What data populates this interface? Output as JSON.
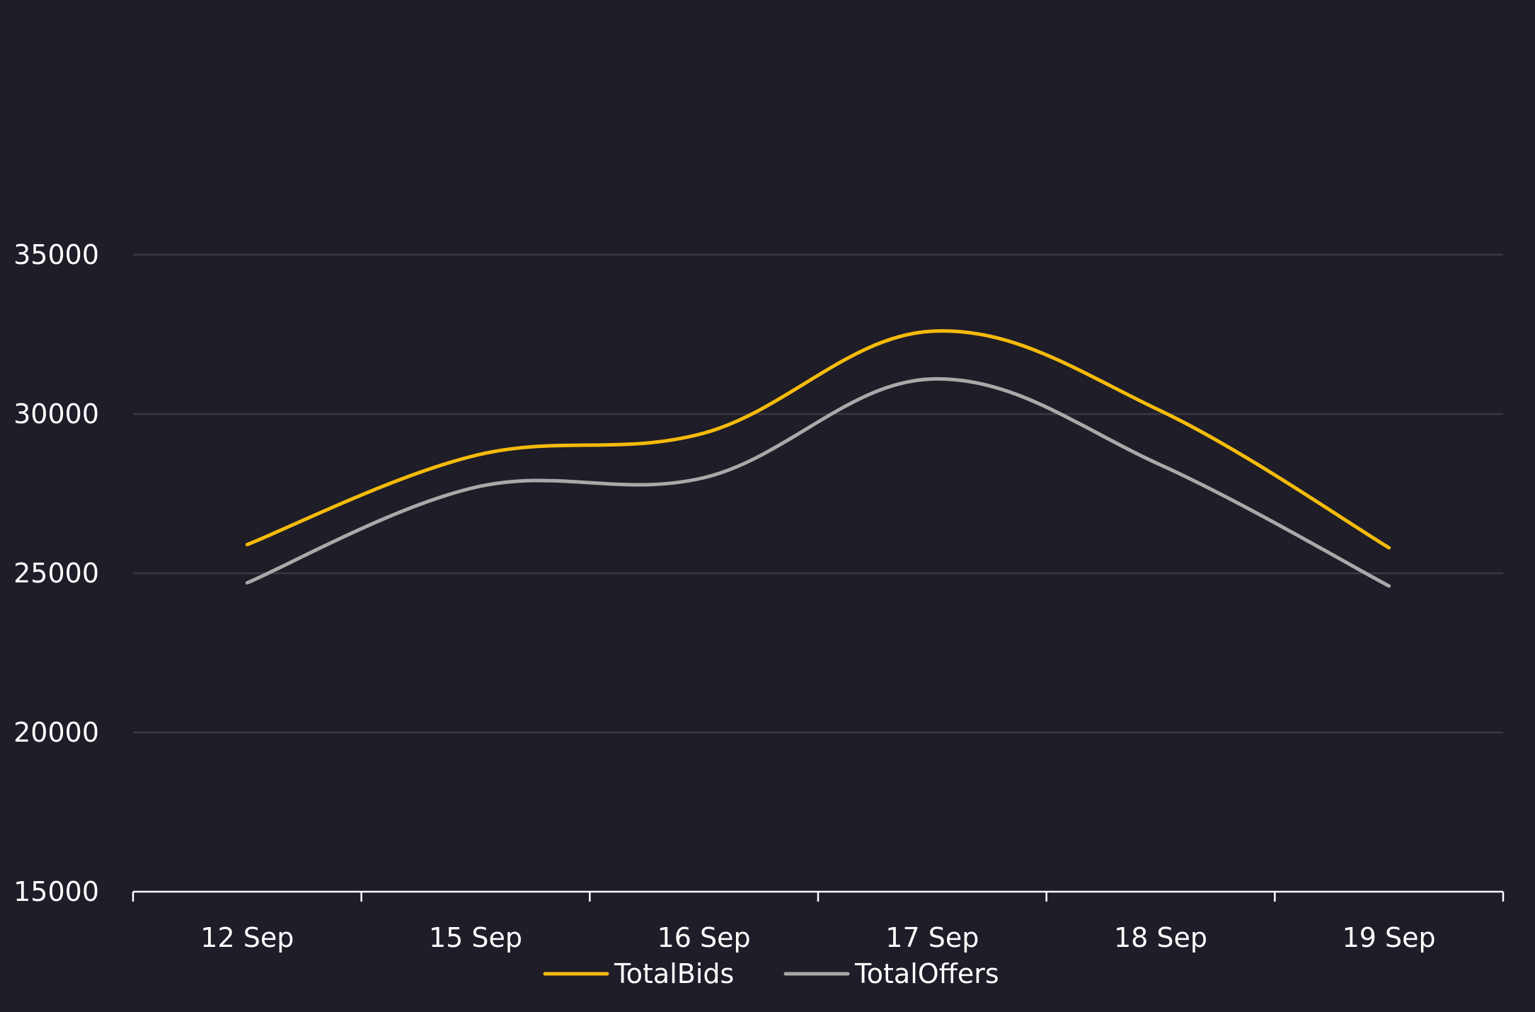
{
  "chart_data": {
    "type": "line",
    "title": "",
    "xlabel": "",
    "ylabel": "",
    "categories": [
      "12 Sep",
      "15 Sep",
      "16 Sep",
      "17 Sep",
      "18 Sep",
      "19 Sep"
    ],
    "y_ticks": [
      15000,
      20000,
      25000,
      30000,
      35000
    ],
    "ylim": [
      15000,
      35000
    ],
    "grid": true,
    "legend_placement": "bottom-center",
    "series": [
      {
        "name": "TotalBids",
        "color": "#f5bb0a",
        "values": [
          25900,
          28700,
          29400,
          32600,
          30100,
          25800
        ]
      },
      {
        "name": "TotalOffers",
        "color": "#a9a9aa",
        "values": [
          24700,
          27700,
          28000,
          31100,
          28400,
          24600
        ]
      }
    ],
    "colors": {
      "background": "#1f1d28",
      "grid": "#3a3841",
      "axis": "#ffffff",
      "text": "#ffffff"
    }
  }
}
